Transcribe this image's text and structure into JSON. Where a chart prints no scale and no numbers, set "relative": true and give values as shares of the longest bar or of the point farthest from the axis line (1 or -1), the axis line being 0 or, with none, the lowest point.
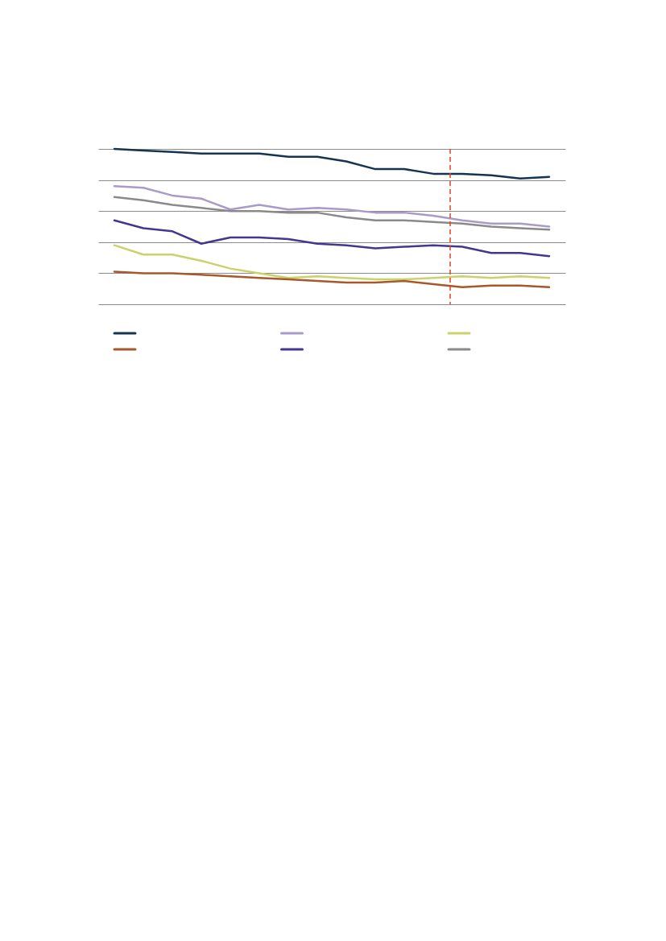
{
  "chart_data": {
    "type": "line",
    "relative": true,
    "categories": [
      null,
      null,
      null,
      null,
      null,
      null,
      null,
      null,
      null,
      null,
      null,
      null,
      null,
      null,
      null,
      null
    ],
    "grid": "y",
    "marker": "none",
    "line_style": "solid",
    "series": [
      {
        "color": "#163450",
        "values": [
          1,
          0.99,
          0.98,
          0.97,
          0.97,
          0.97,
          0.95,
          0.95,
          0.92,
          0.87,
          0.87,
          0.84,
          0.84,
          0.83,
          0.81,
          0.82
        ]
      },
      {
        "color": "#a99bc9",
        "values": [
          0.76,
          0.75,
          0.7,
          0.68,
          0.61,
          0.64,
          0.61,
          0.62,
          0.61,
          0.59,
          0.59,
          0.57,
          0.54,
          0.52,
          0.52,
          0.5
        ]
      },
      {
        "color": "#c9d36a",
        "values": [
          0.38,
          0.32,
          0.32,
          0.28,
          0.23,
          0.2,
          0.17,
          0.18,
          0.17,
          0.16,
          0.16,
          0.17,
          0.18,
          0.17,
          0.18,
          0.17
        ]
      },
      {
        "color": "#a8582a",
        "values": [
          0.21,
          0.2,
          0.2,
          0.19,
          0.18,
          0.17,
          0.16,
          0.15,
          0.14,
          0.14,
          0.15,
          0.13,
          0.11,
          0.12,
          0.12,
          0.11
        ]
      },
      {
        "color": "#46368f",
        "values": [
          0.54,
          0.49,
          0.47,
          0.39,
          0.43,
          0.43,
          0.42,
          0.39,
          0.38,
          0.36,
          0.37,
          0.38,
          0.37,
          0.33,
          0.33,
          0.31
        ]
      },
      {
        "color": "#8a8a8a",
        "values": [
          0.69,
          0.67,
          0.64,
          0.62,
          0.6,
          0.6,
          0.59,
          0.59,
          0.56,
          0.54,
          0.54,
          0.53,
          0.52,
          0.5,
          0.49,
          0.48
        ]
      }
    ]
  }
}
